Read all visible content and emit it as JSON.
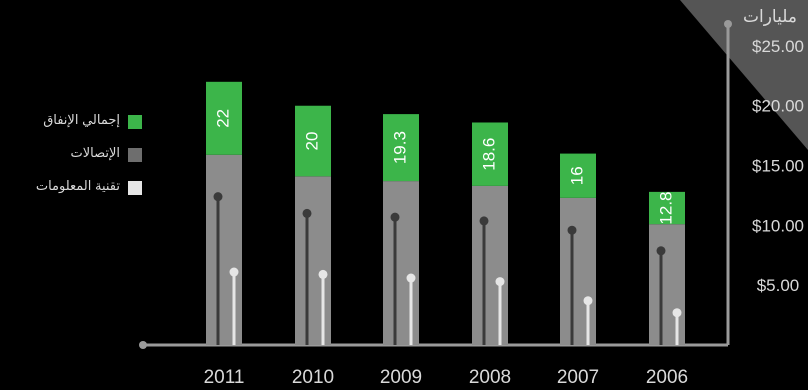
{
  "chart_data": {
    "type": "bar",
    "title": "",
    "unit_label": "مليارات",
    "categories": [
      "2011",
      "2010",
      "2009",
      "2008",
      "2007",
      "2006"
    ],
    "series": [
      {
        "name": "إجمالي الإنفاق",
        "values": [
          22,
          20,
          19.3,
          18.6,
          16,
          12.8
        ]
      },
      {
        "name": "الإتصالات",
        "values": [
          15.9,
          14.1,
          13.7,
          13.3,
          12.3,
          10.1
        ]
      },
      {
        "name": "تقنية المعلومات",
        "values": [
          6.1,
          5.9,
          5.6,
          5.3,
          3.7,
          2.7
        ]
      }
    ],
    "y_ticks": [
      "$5.00",
      "$10.00",
      "$15.00",
      "$20.00",
      "$25.00"
    ],
    "ylim": [
      0,
      27
    ],
    "legend_position": "left",
    "colors": {
      "background": "#000000",
      "total": "#3cb54a",
      "telecom": "#8c8c8c",
      "it": "#e6e6e6",
      "axis": "#9a9a9a",
      "text": "#d9d9d9",
      "corner": "#555555"
    }
  },
  "legend": {
    "items": [
      {
        "label": "إجمالي الإنفاق",
        "color": "#3cb54a"
      },
      {
        "label": "الإتصالات",
        "color": "#6e6e6e"
      },
      {
        "label": "تقنية المعلومات",
        "color": "#e6e6e6"
      }
    ]
  }
}
